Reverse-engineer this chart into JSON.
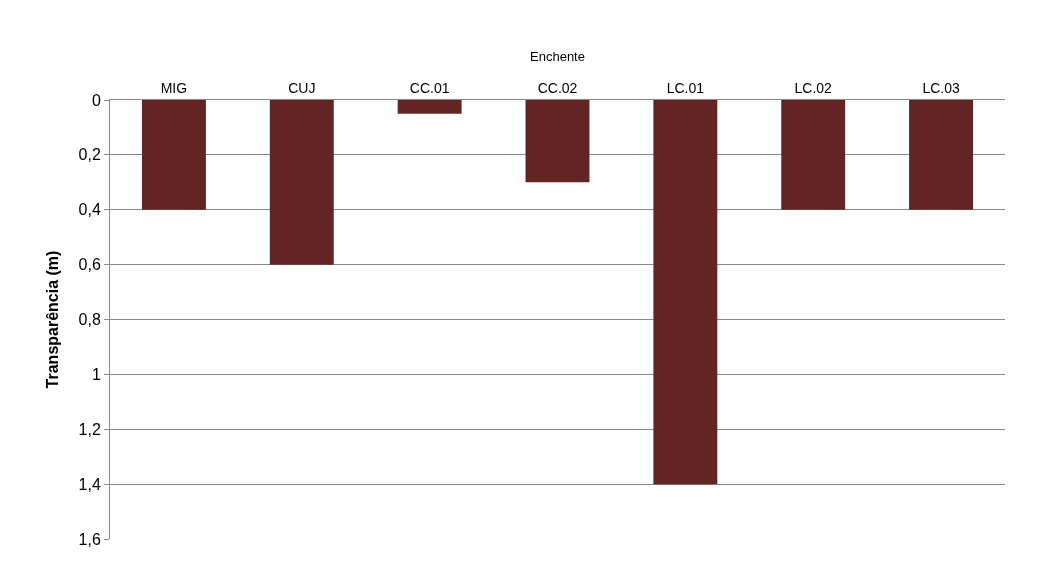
{
  "chart_data": {
    "type": "bar",
    "xlabel": "Enchente",
    "ylabel": "Transparência (m)",
    "categories": [
      "MIG",
      "CUJ",
      "CC.01",
      "CC.02",
      "LC.01",
      "LC.02",
      "LC.03"
    ],
    "values": [
      0.4,
      0.6,
      0.05,
      0.3,
      1.4,
      0.4,
      0.4
    ],
    "color": "#632523",
    "ylim": [
      1.6,
      0
    ],
    "yticks": [
      0,
      {
        "value": 0.2,
        "label": "0,2"
      },
      {
        "value": 0.4,
        "label": "0,4"
      },
      {
        "value": 0.6,
        "label": "0,6"
      },
      {
        "value": 0.8,
        "label": "0,8"
      },
      1,
      {
        "value": 1.2,
        "label": "1,2"
      },
      {
        "value": 1.4,
        "label": "1,4"
      },
      {
        "value": 1.6,
        "label": "1,6"
      }
    ],
    "grid": "y"
  }
}
